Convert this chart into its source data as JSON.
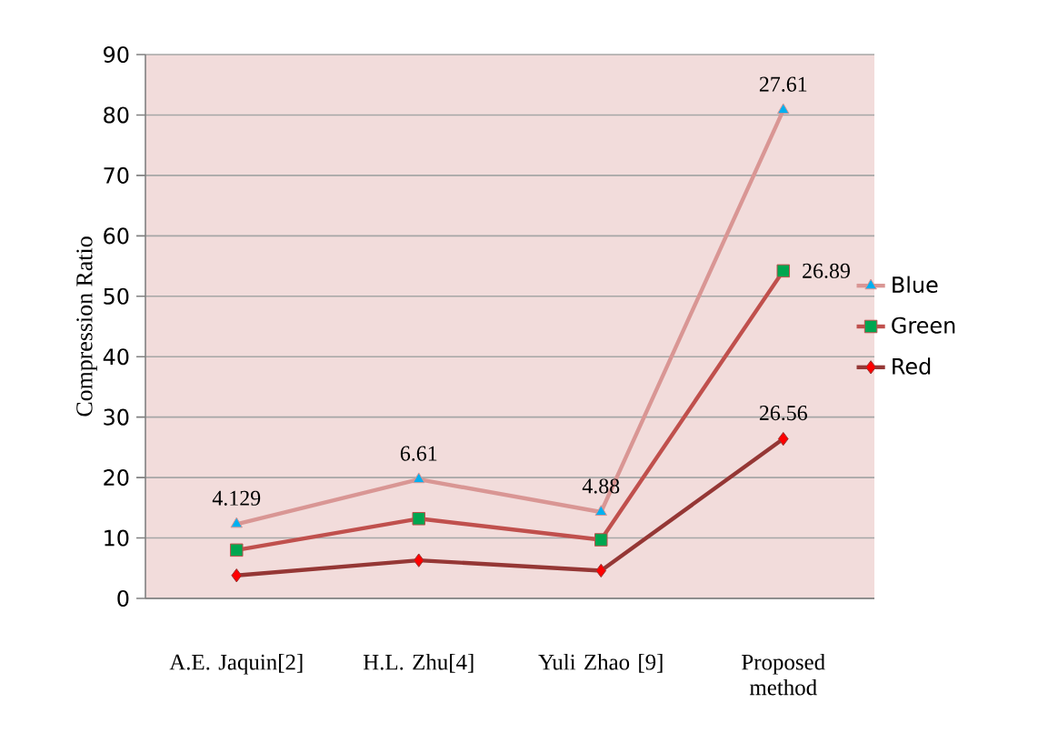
{
  "chart_data": {
    "type": "line",
    "ylabel": "Compression Ratio",
    "categories": [
      "A.E. Jaquin[2]",
      "H.L. Zhu[4]",
      "Yuli Zhao [9]",
      "Proposed method"
    ],
    "series": [
      {
        "name": "Blue",
        "color": "#d99694",
        "colors": [
          "#00b0f0",
          "#00b0f0",
          "#00b0f0",
          "#00b0f0"
        ],
        "marker": "triangle",
        "values": [
          12.3,
          19.7,
          14.3,
          80.8
        ]
      },
      {
        "name": "Green",
        "color": "#c0504d",
        "colors": [
          "#00a650",
          "#00a650",
          "#00a650",
          "#00a650"
        ],
        "marker": "square",
        "values": [
          8.0,
          13.2,
          9.7,
          54.2
        ]
      },
      {
        "name": "Red",
        "color": "#953735",
        "colors": [
          "#ff0000",
          "#ff0000",
          "#ff0000",
          "#ff0000"
        ],
        "marker": "diamond",
        "values": [
          3.8,
          6.3,
          4.6,
          26.4
        ]
      }
    ],
    "annotations": [
      {
        "text": "4.129",
        "x": "A.E. Jaquin[2]",
        "y": 12.3
      },
      {
        "text": "6.61",
        "x": "H.L. Zhu[4]",
        "y": 19.7
      },
      {
        "text": "4.88",
        "x": "Yuli Zhao [9]",
        "y": 14.3
      },
      {
        "text": "27.61",
        "x": "Proposed method",
        "y": 80.8
      },
      {
        "text": "26.89",
        "x": "Proposed method",
        "y": 54.2
      },
      {
        "text": "26.56",
        "x": "Proposed method",
        "y": 26.4
      }
    ],
    "ylim": [
      0,
      90
    ],
    "yticks": [
      0,
      10,
      20,
      30,
      40,
      50,
      60,
      70,
      80,
      90
    ],
    "grid": "y",
    "legend": "right"
  }
}
